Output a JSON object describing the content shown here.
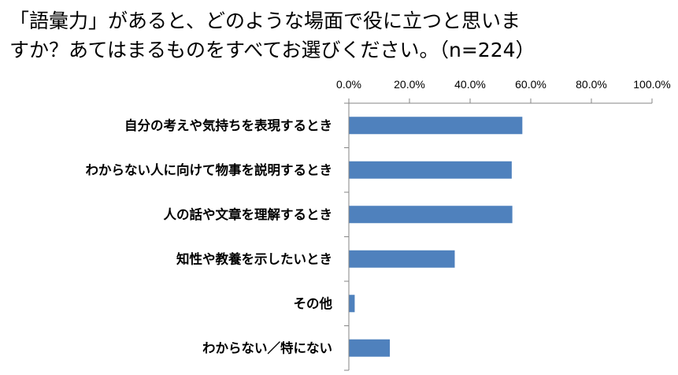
{
  "title": {
    "line1": "「語彙力」があると、どのような場面で役に立つと思いま",
    "line2": "すか？あてはまるものをすべてお選びください。（n=224）"
  },
  "chart_data": {
    "type": "bar",
    "orientation": "horizontal",
    "title": "「語彙力」があると、どのような場面で役に立つと思いますか？あてはまるものをすべてお選びください。（n=224）",
    "categories": [
      "自分の考えや気持ちを表現するとき",
      "わからない人に向けて物事を説明するとき",
      "人の話や文章を理解するとき",
      "知性や教養を示したいとき",
      "その他",
      "わからない／特にない"
    ],
    "values": [
      57.1,
      53.6,
      53.8,
      34.8,
      1.8,
      13.4
    ],
    "xlim": [
      0,
      100
    ],
    "x_ticks": [
      0,
      20,
      40,
      60,
      80,
      100
    ],
    "x_tick_labels": [
      "0.0%",
      "20.0%",
      "40.0%",
      "60.0%",
      "80.0%",
      "100.0%"
    ],
    "axis_position": "top",
    "grid": false,
    "legend": "none",
    "bar_color": "#4f81bd",
    "axis_color": "#868686"
  }
}
